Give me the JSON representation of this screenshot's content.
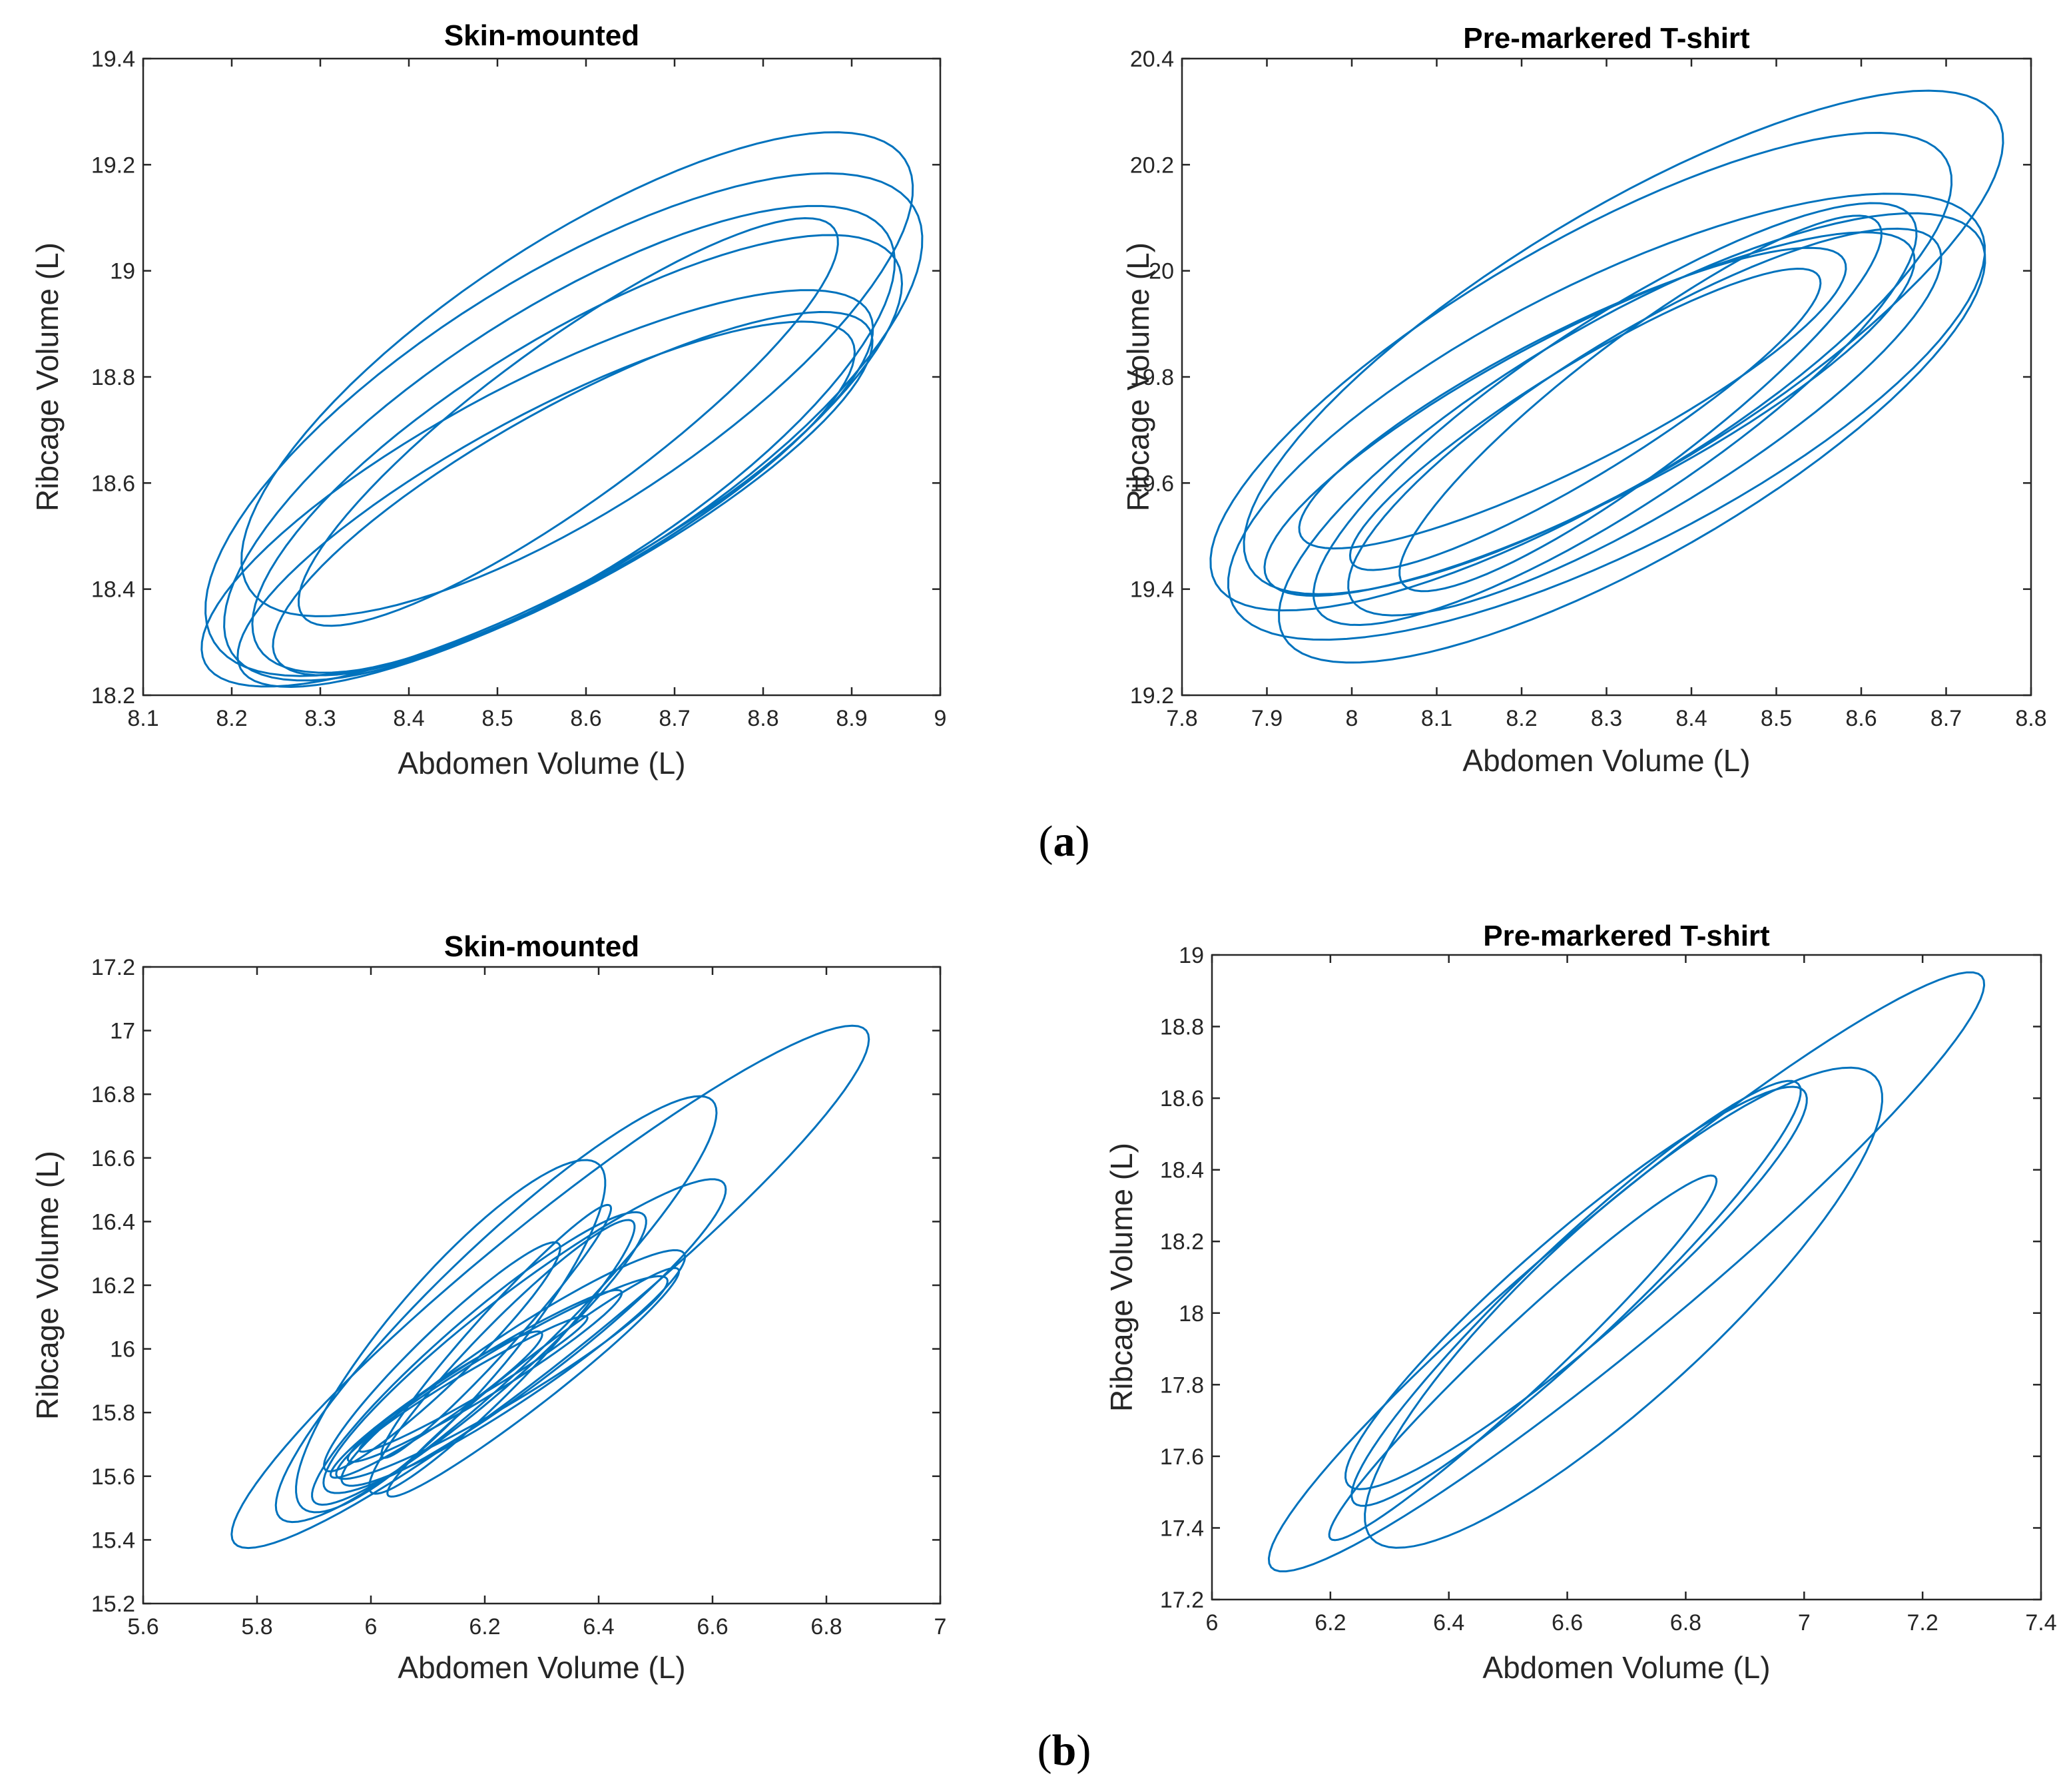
{
  "figure": {
    "label_a": "a",
    "label_b": "b"
  },
  "chart_data": [
    {
      "type": "line",
      "panel": "a",
      "title": "Skin-mounted",
      "xlabel": "Abdomen Volume (L)",
      "ylabel": "Ribcage Volume (L)",
      "xlim": [
        8.1,
        9.0
      ],
      "ylim": [
        18.2,
        19.4
      ],
      "xticks": [
        8.1,
        8.2,
        8.3,
        8.4,
        8.5,
        8.6,
        8.7,
        8.8,
        8.9,
        9.0
      ],
      "xtick_labels": [
        "8.1",
        "8.2",
        "8.3",
        "8.4",
        "8.5",
        "8.6",
        "8.7",
        "8.8",
        "8.9",
        "9"
      ],
      "yticks": [
        18.2,
        18.4,
        18.6,
        18.8,
        19.0,
        19.2,
        19.4
      ],
      "ytick_labels": [
        "18.2",
        "18.4",
        "18.6",
        "18.8",
        "19",
        "19.2",
        "19.4"
      ],
      "loops": [
        {
          "lo": [
            8.22,
            18.4
          ],
          "hi": [
            8.96,
            19.21
          ],
          "w": 0.34
        },
        {
          "lo": [
            8.18,
            18.3
          ],
          "hi": [
            8.97,
            19.12
          ],
          "w": 0.36
        },
        {
          "lo": [
            8.2,
            18.28
          ],
          "hi": [
            8.94,
            19.07
          ],
          "w": 0.34
        },
        {
          "lo": [
            8.23,
            18.29
          ],
          "hi": [
            8.95,
            19.02
          ],
          "w": 0.32
        },
        {
          "lo": [
            8.17,
            18.26
          ],
          "hi": [
            8.92,
            18.92
          ],
          "w": 0.28
        },
        {
          "lo": [
            8.25,
            18.27
          ],
          "hi": [
            8.92,
            18.89
          ],
          "w": 0.26
        },
        {
          "lo": [
            8.28,
            18.35
          ],
          "hi": [
            8.88,
            19.08
          ],
          "w": 0.24
        },
        {
          "lo": [
            8.21,
            18.25
          ],
          "hi": [
            8.9,
            18.87
          ],
          "w": 0.26
        }
      ]
    },
    {
      "type": "line",
      "panel": "a",
      "title": "Pre-markered T-shirt",
      "xlabel": "Abdomen Volume (L)",
      "ylabel": "Ribcage Volume (L)",
      "xlim": [
        7.8,
        8.8
      ],
      "ylim": [
        19.2,
        20.4
      ],
      "xticks": [
        7.8,
        7.9,
        8.0,
        8.1,
        8.2,
        8.3,
        8.4,
        8.5,
        8.6,
        8.7,
        8.8
      ],
      "xtick_labels": [
        "7.8",
        "7.9",
        "8",
        "8.1",
        "8.2",
        "8.3",
        "8.4",
        "8.5",
        "8.6",
        "8.7",
        "8.8"
      ],
      "yticks": [
        19.2,
        19.4,
        19.6,
        19.8,
        20.0,
        20.2,
        20.4
      ],
      "ytick_labels": [
        "19.2",
        "19.4",
        "19.6",
        "19.8",
        "20",
        "20.2",
        "20.4"
      ],
      "loops": [
        {
          "lo": [
            7.88,
            19.44
          ],
          "hi": [
            8.76,
            20.29
          ],
          "w": 0.3
        },
        {
          "lo": [
            7.84,
            19.41
          ],
          "hi": [
            8.7,
            20.21
          ],
          "w": 0.3
        },
        {
          "lo": [
            7.86,
            19.37
          ],
          "hi": [
            8.74,
            20.08
          ],
          "w": 0.32
        },
        {
          "lo": [
            7.92,
            19.31
          ],
          "hi": [
            8.74,
            20.06
          ],
          "w": 0.3
        },
        {
          "lo": [
            7.96,
            19.36
          ],
          "hi": [
            8.66,
            20.1
          ],
          "w": 0.26
        },
        {
          "lo": [
            8.0,
            19.38
          ],
          "hi": [
            8.69,
            20.05
          ],
          "w": 0.26
        },
        {
          "lo": [
            8.06,
            19.41
          ],
          "hi": [
            8.62,
            20.09
          ],
          "w": 0.22
        },
        {
          "lo": [
            7.9,
            19.42
          ],
          "hi": [
            8.66,
            20.04
          ],
          "w": 0.24
        },
        {
          "lo": [
            7.94,
            19.5
          ],
          "hi": [
            8.58,
            20.02
          ],
          "w": 0.22
        },
        {
          "lo": [
            8.0,
            19.45
          ],
          "hi": [
            8.55,
            19.99
          ],
          "w": 0.2
        }
      ]
    },
    {
      "type": "line",
      "panel": "b",
      "title": "Skin-mounted",
      "xlabel": "Abdomen Volume (L)",
      "ylabel": "Ribcage Volume (L)",
      "xlim": [
        5.6,
        7.0
      ],
      "ylim": [
        15.2,
        17.2
      ],
      "xticks": [
        5.6,
        5.8,
        6.0,
        6.2,
        6.4,
        6.6,
        6.8,
        7.0
      ],
      "xtick_labels": [
        "5.6",
        "5.8",
        "6",
        "6.2",
        "6.4",
        "6.6",
        "6.8",
        "7"
      ],
      "yticks": [
        15.2,
        15.4,
        15.6,
        15.8,
        16.0,
        16.2,
        16.4,
        16.6,
        16.8,
        17.0,
        17.2
      ],
      "ytick_labels": [
        "15.2",
        "15.4",
        "15.6",
        "15.8",
        "16",
        "16.2",
        "16.4",
        "16.6",
        "16.8",
        "17",
        "17.2"
      ],
      "loops": [
        {
          "lo": [
            5.76,
            15.39
          ],
          "hi": [
            6.87,
            17.0
          ],
          "w": 0.16
        },
        {
          "lo": [
            5.84,
            15.47
          ],
          "hi": [
            6.6,
            16.78
          ],
          "w": 0.2
        },
        {
          "lo": [
            5.88,
            15.5
          ],
          "hi": [
            6.4,
            16.58
          ],
          "w": 0.26
        },
        {
          "lo": [
            5.92,
            15.56
          ],
          "hi": [
            6.62,
            16.52
          ],
          "w": 0.18
        },
        {
          "lo": [
            5.9,
            15.52
          ],
          "hi": [
            6.48,
            16.42
          ],
          "w": 0.18
        },
        {
          "lo": [
            5.95,
            15.58
          ],
          "hi": [
            6.55,
            16.3
          ],
          "w": 0.16
        },
        {
          "lo": [
            5.94,
            15.6
          ],
          "hi": [
            6.52,
            16.22
          ],
          "w": 0.14
        },
        {
          "lo": [
            6.0,
            15.55
          ],
          "hi": [
            6.46,
            16.4
          ],
          "w": 0.16
        },
        {
          "lo": [
            5.92,
            15.62
          ],
          "hi": [
            6.33,
            16.33
          ],
          "w": 0.16
        },
        {
          "lo": [
            5.96,
            15.65
          ],
          "hi": [
            6.44,
            16.18
          ],
          "w": 0.12
        },
        {
          "lo": [
            6.03,
            15.54
          ],
          "hi": [
            6.54,
            16.25
          ],
          "w": 0.12
        },
        {
          "lo": [
            5.98,
            15.68
          ],
          "hi": [
            6.38,
            16.1
          ],
          "w": 0.1
        },
        {
          "lo": [
            5.93,
            15.6
          ],
          "hi": [
            6.3,
            16.05
          ],
          "w": 0.14
        },
        {
          "lo": [
            6.02,
            15.66
          ],
          "hi": [
            6.42,
            16.45
          ],
          "w": 0.12
        }
      ]
    },
    {
      "type": "line",
      "panel": "b",
      "title": "Pre-markered T-shirt",
      "xlabel": "Abdomen Volume (L)",
      "ylabel": "Ribcage Volume (L)",
      "xlim": [
        6.0,
        7.4
      ],
      "ylim": [
        17.2,
        19.0
      ],
      "xticks": [
        6.0,
        6.2,
        6.4,
        6.6,
        6.8,
        7.0,
        7.2,
        7.4
      ],
      "xtick_labels": [
        "6",
        "6.2",
        "6.4",
        "6.6",
        "6.8",
        "7",
        "7.2",
        "7.4"
      ],
      "yticks": [
        17.2,
        17.4,
        17.6,
        17.8,
        18.0,
        18.2,
        18.4,
        18.6,
        18.8,
        19.0
      ],
      "ytick_labels": [
        "17.2",
        "17.4",
        "17.6",
        "17.8",
        "18",
        "18.2",
        "18.4",
        "18.6",
        "18.8",
        "19"
      ],
      "loops": [
        {
          "lo": [
            6.1,
            17.29
          ],
          "hi": [
            7.3,
            18.94
          ],
          "w": 0.14
        },
        {
          "lo": [
            6.27,
            17.37
          ],
          "hi": [
            7.12,
            18.66
          ],
          "w": 0.26
        },
        {
          "lo": [
            6.23,
            17.52
          ],
          "hi": [
            7.0,
            18.62
          ],
          "w": 0.18
        },
        {
          "lo": [
            6.24,
            17.47
          ],
          "hi": [
            6.99,
            18.64
          ],
          "w": 0.16
        },
        {
          "lo": [
            6.2,
            17.37
          ],
          "hi": [
            6.85,
            18.38
          ],
          "w": 0.12
        }
      ]
    }
  ]
}
